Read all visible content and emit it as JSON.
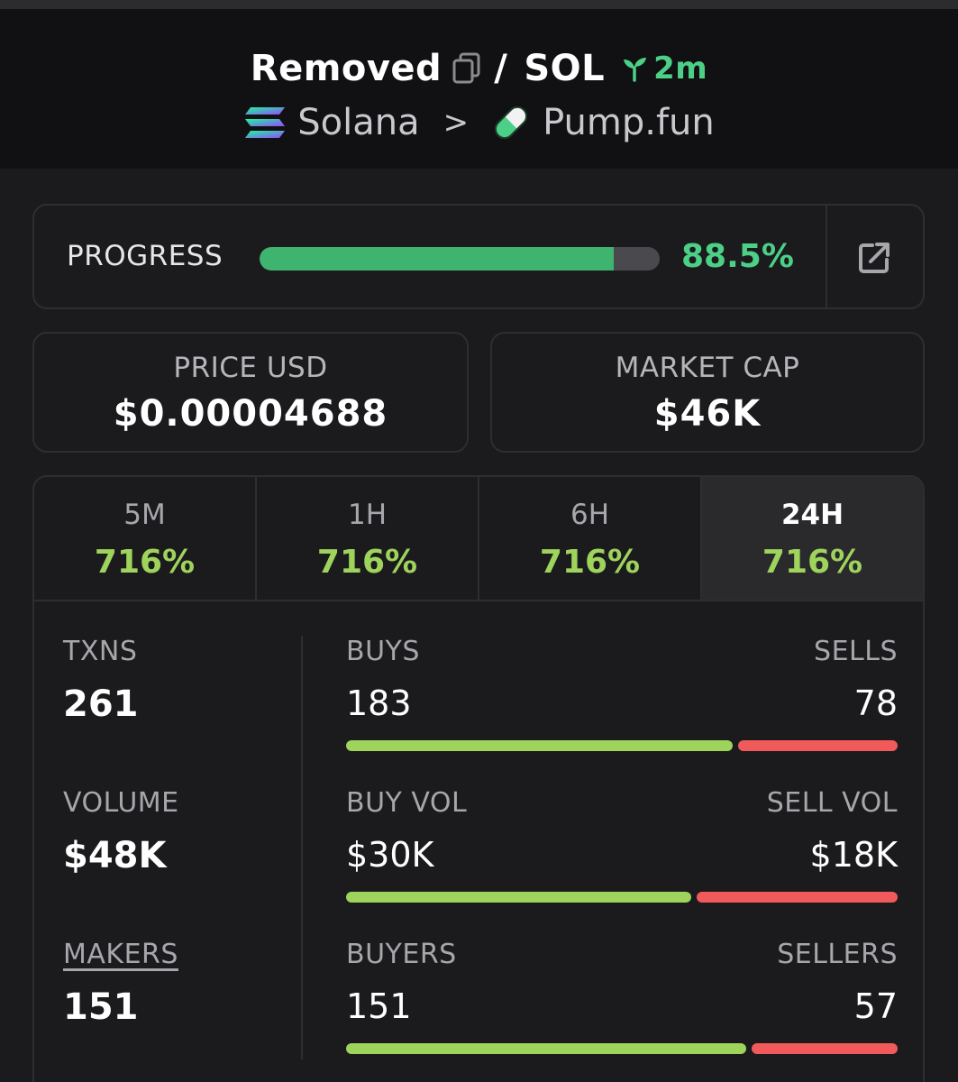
{
  "header": {
    "token_name": "Removed",
    "separator": "/",
    "quote": "SOL",
    "age": "2m",
    "chain": "Solana",
    "chevron": ">",
    "dex": "Pump.fun",
    "colors": {
      "age": "#4ccf86",
      "pill_green": "#4ccf86",
      "pill_white": "#f2f2f2"
    }
  },
  "progress": {
    "label": "PROGRESS",
    "value_text": "88.5%",
    "value": 88.5,
    "external_icon": "external-link-icon"
  },
  "price": {
    "label": "PRICE USD",
    "value": "$0.00004688"
  },
  "market_cap": {
    "label": "MARKET CAP",
    "value": "$46K"
  },
  "timeframes": [
    {
      "label": "5M",
      "change": "716%"
    },
    {
      "label": "1H",
      "change": "716%"
    },
    {
      "label": "6H",
      "change": "716%"
    },
    {
      "label": "24H",
      "change": "716%",
      "active": true
    }
  ],
  "metrics": {
    "txns": {
      "label": "TXNS",
      "value": "261"
    },
    "volume": {
      "label": "VOLUME",
      "value": "$48K"
    },
    "makers": {
      "label": "MAKERS",
      "value": "151"
    }
  },
  "splits": {
    "txns": {
      "left_label": "BUYS",
      "right_label": "SELLS",
      "left_value": "183",
      "right_value": "78",
      "buy": 183,
      "sell": 78
    },
    "volume": {
      "left_label": "BUY VOL",
      "right_label": "SELL VOL",
      "left_value": "$30K",
      "right_value": "$18K",
      "buy": 30,
      "sell": 18
    },
    "makers": {
      "left_label": "BUYERS",
      "right_label": "SELLERS",
      "left_value": "151",
      "right_value": "57",
      "buy": 151,
      "sell": 57
    }
  }
}
